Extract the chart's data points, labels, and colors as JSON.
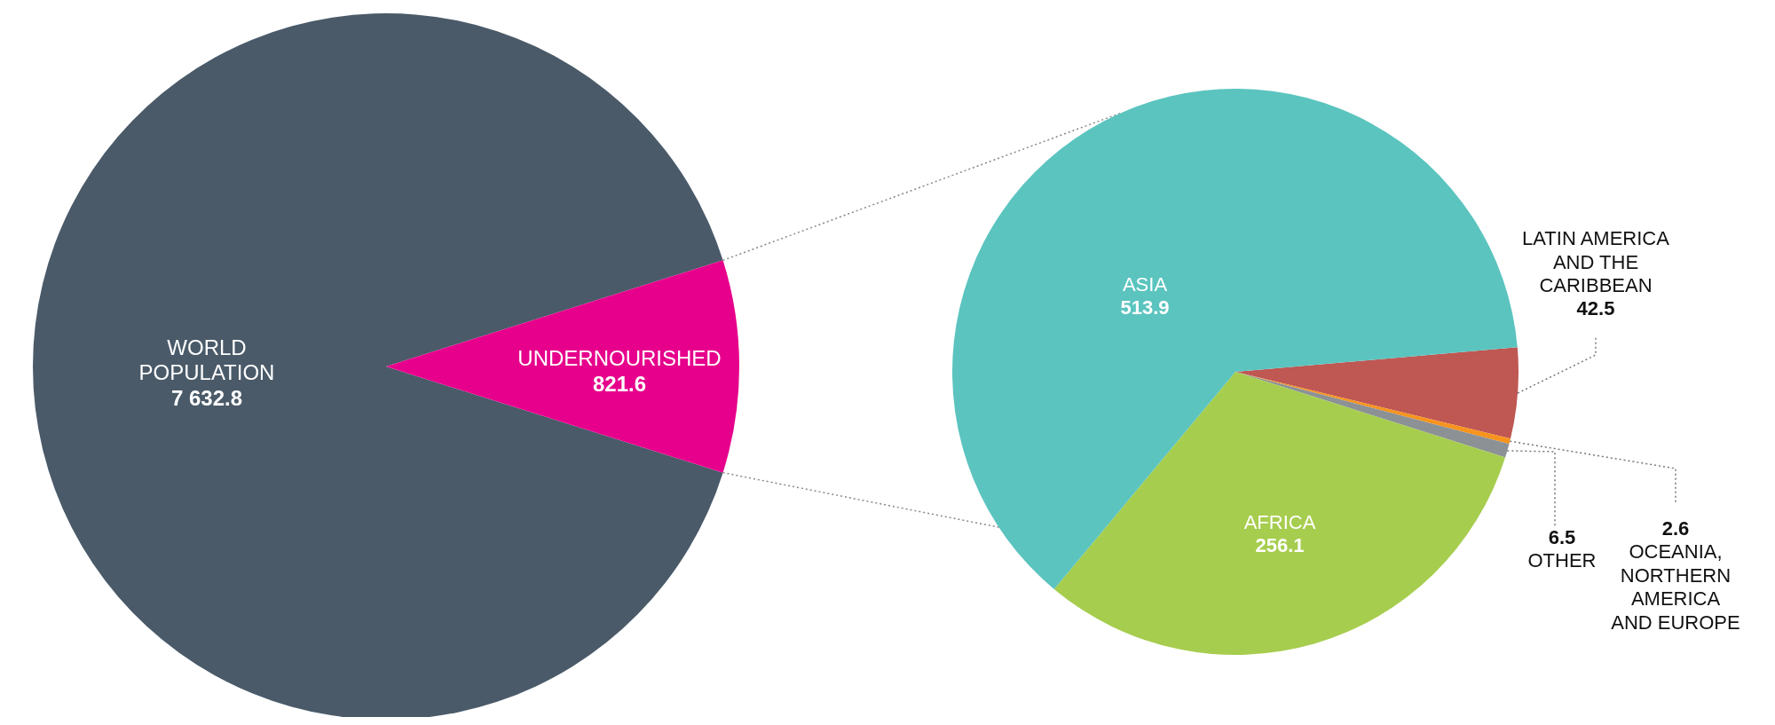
{
  "chart_data": [
    {
      "type": "pie",
      "categories": [
        "WORLD POPULATION",
        "UNDERNOURISHED"
      ],
      "values": [
        7632.8,
        821.6
      ],
      "value_labels": [
        "7 632.8",
        "821.6"
      ],
      "colors": [
        "#4a5a69",
        "#e6008c"
      ]
    },
    {
      "type": "pie",
      "categories": [
        "LATIN AMERICA AND THE CARIBBEAN",
        "OCEANIA, NORTHERN AMERICA AND EUROPE",
        "OTHER",
        "AFRICA",
        "ASIA"
      ],
      "values": [
        42.5,
        2.6,
        6.5,
        256.1,
        513.9
      ],
      "value_labels": [
        "42.5",
        "2.6",
        "6.5",
        "256.1",
        "513.9"
      ],
      "colors": [
        "#bf5753",
        "#f7941d",
        "#8c9196",
        "#a6cd4e",
        "#5bc4bf"
      ]
    }
  ]
}
